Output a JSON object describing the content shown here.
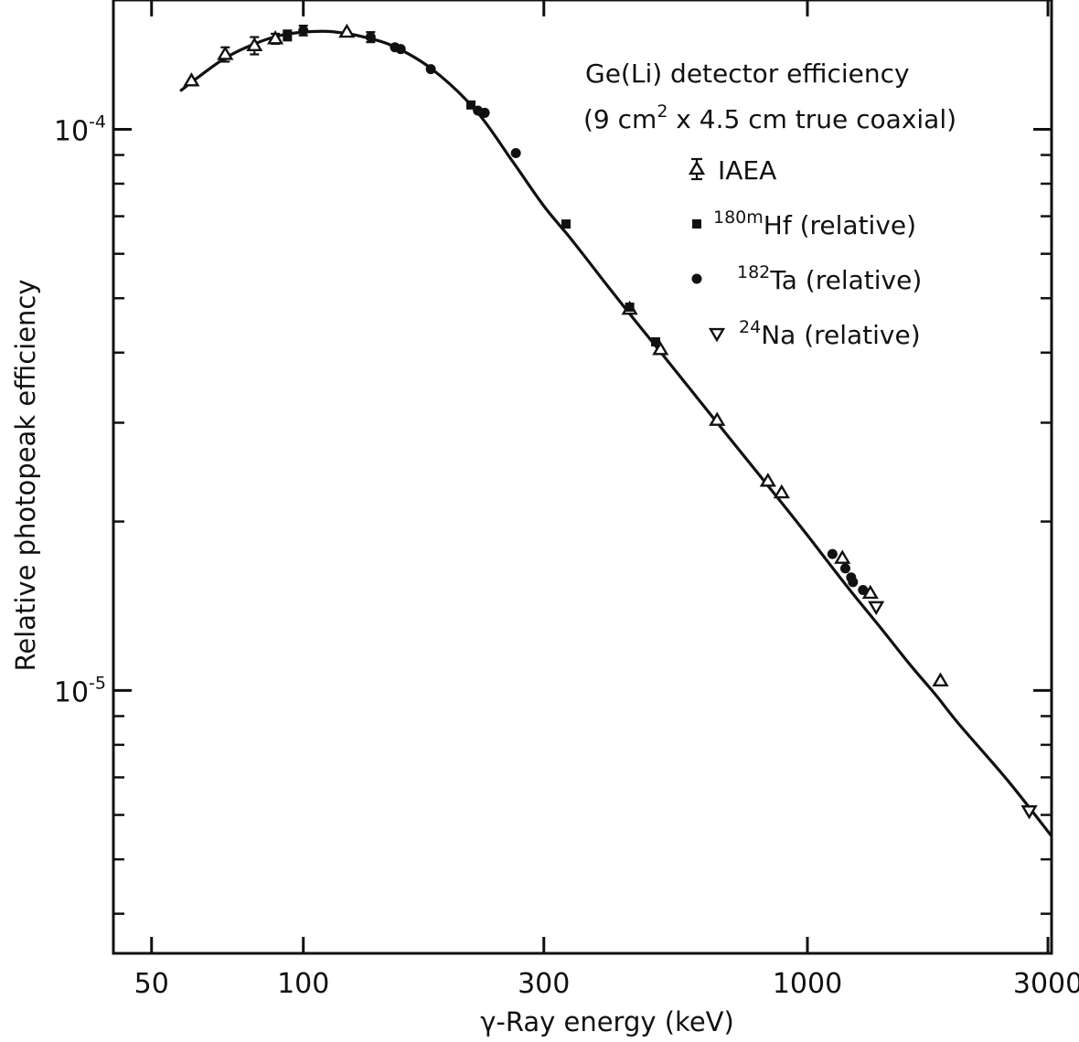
{
  "chart_data": {
    "type": "scatter",
    "x_scale": "log",
    "y_scale": "log",
    "xlim": [
      42,
      3050
    ],
    "ylim": [
      3.4e-06,
      0.00017
    ],
    "xlabel": "γ-Ray energy (keV)",
    "ylabel": "Relative photopeak efficiency",
    "x_ticks": [
      {
        "value": 50,
        "label": "50"
      },
      {
        "value": 100,
        "label": "100"
      },
      {
        "value": 300,
        "label": "300"
      },
      {
        "value": 1000,
        "label": "1000"
      },
      {
        "value": 3000,
        "label": "3000"
      }
    ],
    "y_ticks": [
      {
        "value": 0.0001,
        "base": "10",
        "exp": "-4"
      },
      {
        "value": 1e-05,
        "base": "10",
        "exp": "-5"
      }
    ],
    "annotation": {
      "line1": "Ge(Li) detector efficiency",
      "line2_a": "(9 cm",
      "line2_sup": "2",
      "line2_b": " x 4.5 cm  true coaxial)"
    },
    "legend": [
      {
        "symbol": "triangle-up",
        "sup": "",
        "text": "IAEA"
      },
      {
        "symbol": "square",
        "sup": "180m",
        "text": "Hf (relative)"
      },
      {
        "symbol": "circle",
        "sup": "182",
        "text": "Ta (relative)"
      },
      {
        "symbol": "triangle-down",
        "sup": "24",
        "text": "Na (relative)"
      }
    ],
    "curve": {
      "x": [
        57,
        62,
        70,
        80,
        90,
        100,
        110,
        120,
        130,
        150,
        180,
        220,
        260,
        300,
        340,
        400,
        450,
        500,
        600,
        700,
        800,
        900,
        1000,
        1200,
        1400,
        1600,
        1800,
        2000,
        2500,
        3050
      ],
      "y": [
        0.000117,
        0.000124,
        0.000134,
        0.000142,
        0.000147,
        0.000149,
        0.0001495,
        0.0001485,
        0.0001465,
        0.000141,
        0.000128,
        0.000108,
        8.77e-05,
        7.3e-05,
        6.37e-05,
        5.28e-05,
        4.62e-05,
        4.11e-05,
        3.35e-05,
        2.82e-05,
        2.43e-05,
        2.13e-05,
        1.89e-05,
        1.53e-05,
        1.29e-05,
        1.11e-05,
        9.8e-06,
        8.7e-06,
        6.9e-06,
        5.5e-06
      ]
    },
    "series": [
      {
        "name": "IAEA",
        "symbol": "triangle-up",
        "points": [
          {
            "x": 60,
            "y": 0.000122
          },
          {
            "x": 70,
            "y": 0.000136,
            "err": 4e-06
          },
          {
            "x": 80,
            "y": 0.000141,
            "err": 5e-06
          },
          {
            "x": 88,
            "y": 0.000145,
            "err": 3e-06
          },
          {
            "x": 122,
            "y": 0.000149
          },
          {
            "x": 444,
            "y": 4.78e-05
          },
          {
            "x": 511,
            "y": 4.05e-05
          },
          {
            "x": 662,
            "y": 3.03e-05
          },
          {
            "x": 835,
            "y": 2.36e-05
          },
          {
            "x": 889,
            "y": 2.25e-05
          },
          {
            "x": 1173,
            "y": 1.72e-05
          },
          {
            "x": 1333,
            "y": 1.49e-05
          },
          {
            "x": 1836,
            "y": 1.04e-05
          }
        ]
      },
      {
        "name": "180mHf (relative)",
        "symbol": "square",
        "points": [
          {
            "x": 93,
            "y": 0.000147,
            "err": 3e-06
          },
          {
            "x": 215,
            "y": 0.0001105
          },
          {
            "x": 332,
            "y": 6.78e-05
          },
          {
            "x": 444,
            "y": 4.82e-05
          },
          {
            "x": 500,
            "y": 4.18e-05
          }
        ]
      },
      {
        "name": "182Ta (relative)",
        "symbol": "circle",
        "points": [
          {
            "x": 100,
            "y": 0.00015,
            "err": 3e-06
          },
          {
            "x": 136,
            "y": 0.000146,
            "err": 3e-06
          },
          {
            "x": 152,
            "y": 0.00014
          },
          {
            "x": 156,
            "y": 0.000139
          },
          {
            "x": 179,
            "y": 0.000128
          },
          {
            "x": 222,
            "y": 0.000108
          },
          {
            "x": 229,
            "y": 0.000107
          },
          {
            "x": 264,
            "y": 9.07e-05
          },
          {
            "x": 1121,
            "y": 1.75e-05
          },
          {
            "x": 1189,
            "y": 1.65e-05
          },
          {
            "x": 1221,
            "y": 1.59e-05
          },
          {
            "x": 1231,
            "y": 1.56e-05
          },
          {
            "x": 1289,
            "y": 1.51e-05
          }
        ]
      },
      {
        "name": "24Na (relative)",
        "symbol": "triangle-down",
        "points": [
          {
            "x": 1369,
            "y": 1.41e-05
          },
          {
            "x": 2754,
            "y": 6.1e-06
          }
        ]
      }
    ]
  }
}
